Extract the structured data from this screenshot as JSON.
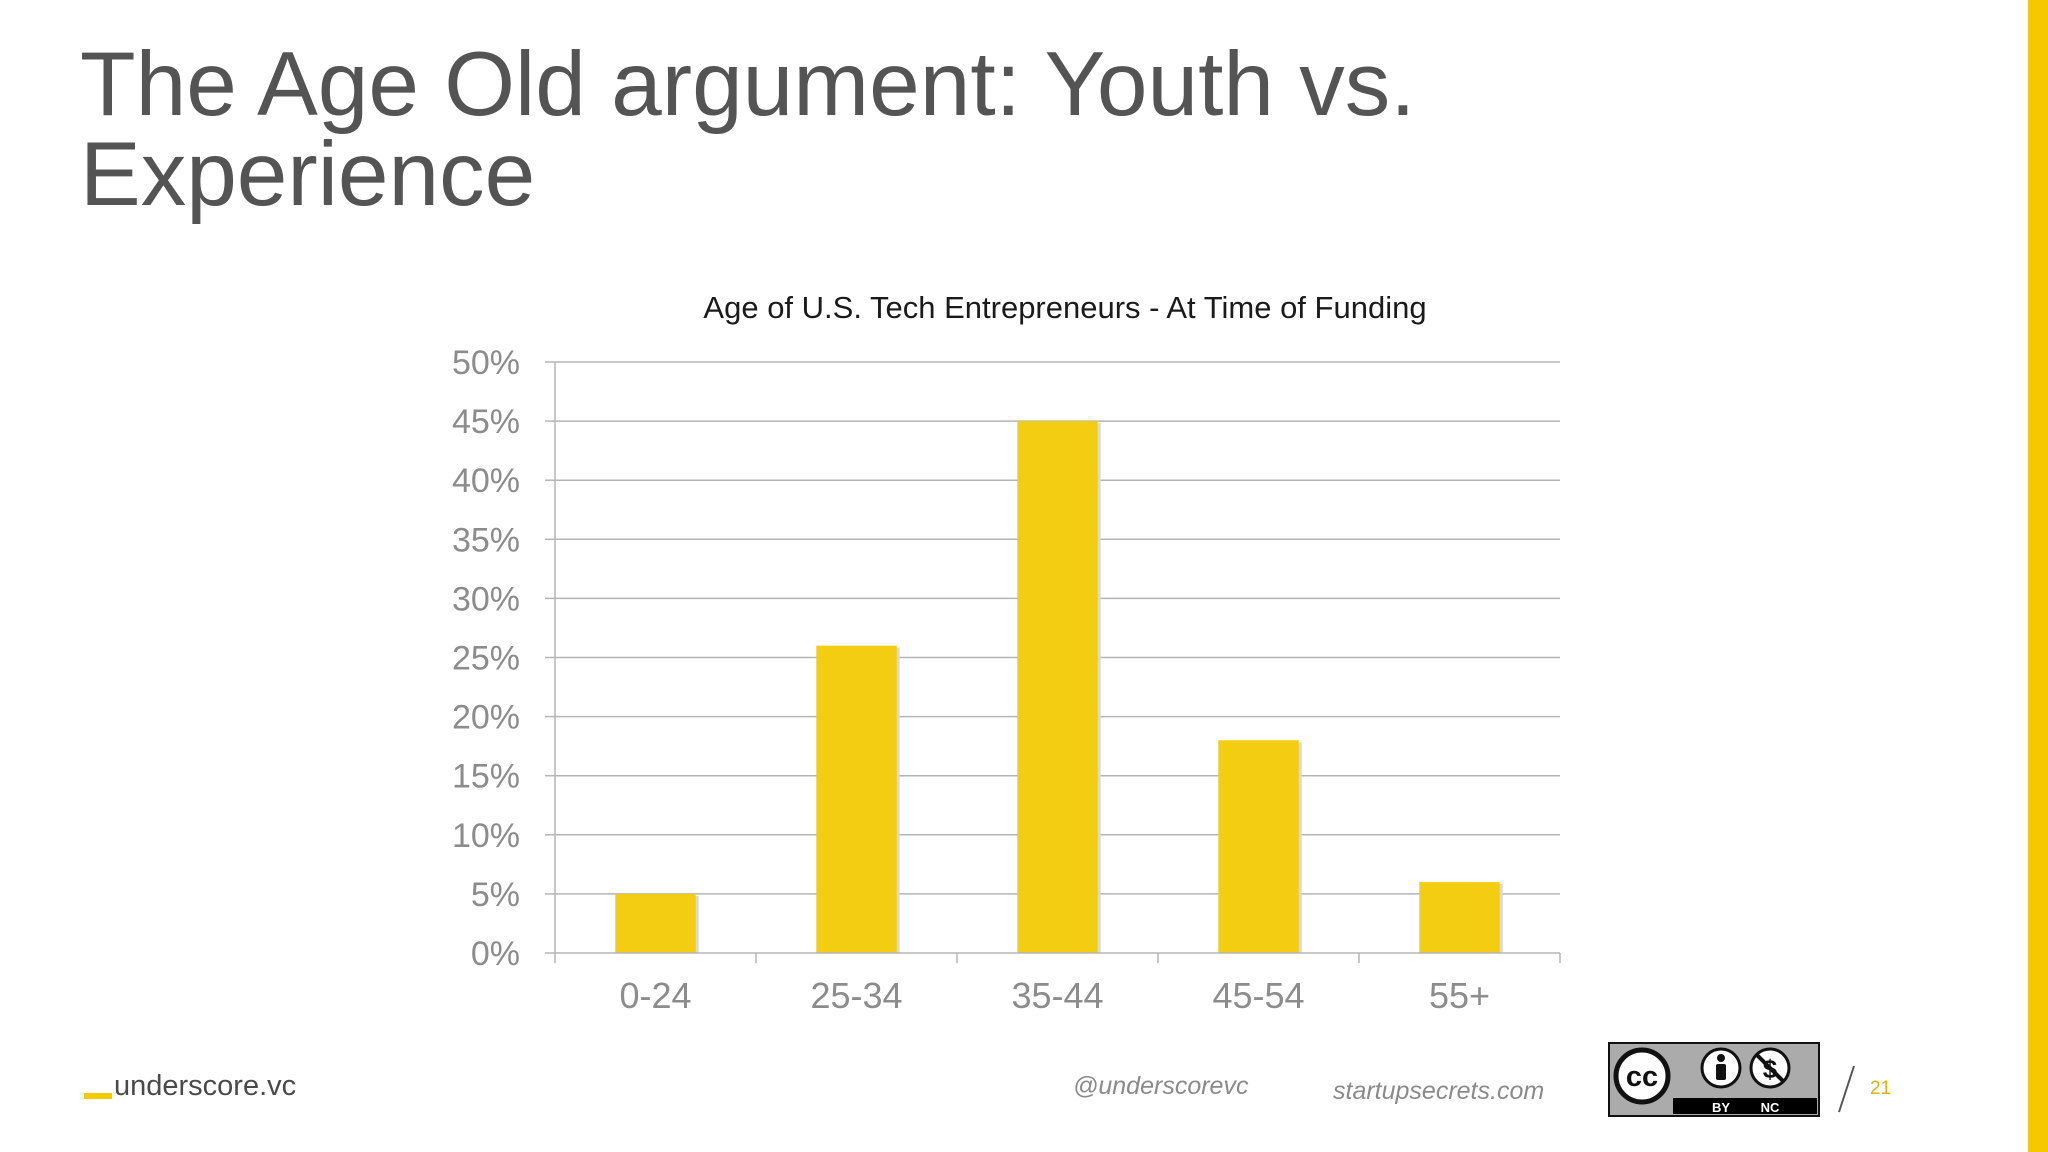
{
  "slide": {
    "title": "The Age Old argument: Youth vs. Experience",
    "page_number": "21",
    "accent_color": "#F5C800"
  },
  "chart_data": {
    "type": "bar",
    "title": "Age of U.S. Tech Entrepreneurs - At Time of Funding",
    "categories": [
      "0-24",
      "25-34",
      "35-44",
      "45-54",
      "55+"
    ],
    "values": [
      5,
      26,
      45,
      18,
      6
    ],
    "ylim": [
      0,
      50
    ],
    "y_tick_values": [
      0,
      5,
      10,
      15,
      20,
      25,
      30,
      35,
      40,
      45,
      50
    ],
    "y_tick_labels": [
      "0%",
      "5%",
      "10%",
      "15%",
      "20%",
      "25%",
      "30%",
      "35%",
      "40%",
      "45%",
      "50%"
    ],
    "xlabel": "",
    "ylabel": "",
    "grid": true,
    "bar_color": "#F2CD12"
  },
  "footer": {
    "brand": "underscore.vc",
    "handle": "@underscorevc",
    "site": "startupsecrets.com",
    "license_badge": {
      "icon": "cc-by-nc-icon",
      "by_label": "BY",
      "nc_label": "NC"
    }
  }
}
